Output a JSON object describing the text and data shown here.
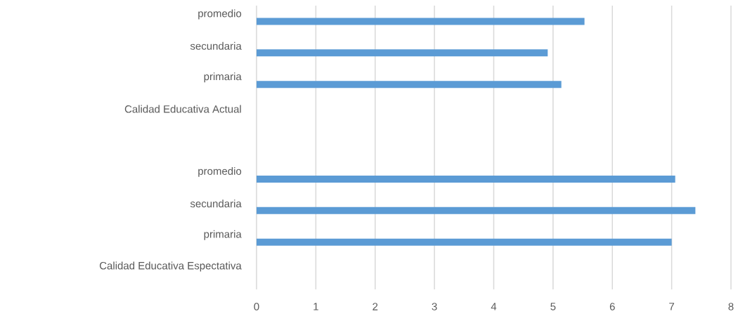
{
  "chart_data": {
    "type": "bar",
    "orientation": "horizontal",
    "categories": [
      "promedio",
      "secundaria",
      "primaria",
      "Calidad Educativa Actual",
      null,
      "promedio",
      "secundaria",
      "primaria",
      "Calidad Educativa Espectativa"
    ],
    "values": [
      5.53,
      4.91,
      5.14,
      null,
      null,
      7.06,
      7.4,
      7.0,
      null
    ],
    "color": "#5b9bd5",
    "xlim": [
      0,
      8
    ],
    "xticks": [
      0,
      1,
      2,
      3,
      4,
      5,
      6,
      7,
      8
    ],
    "grid": "x"
  }
}
